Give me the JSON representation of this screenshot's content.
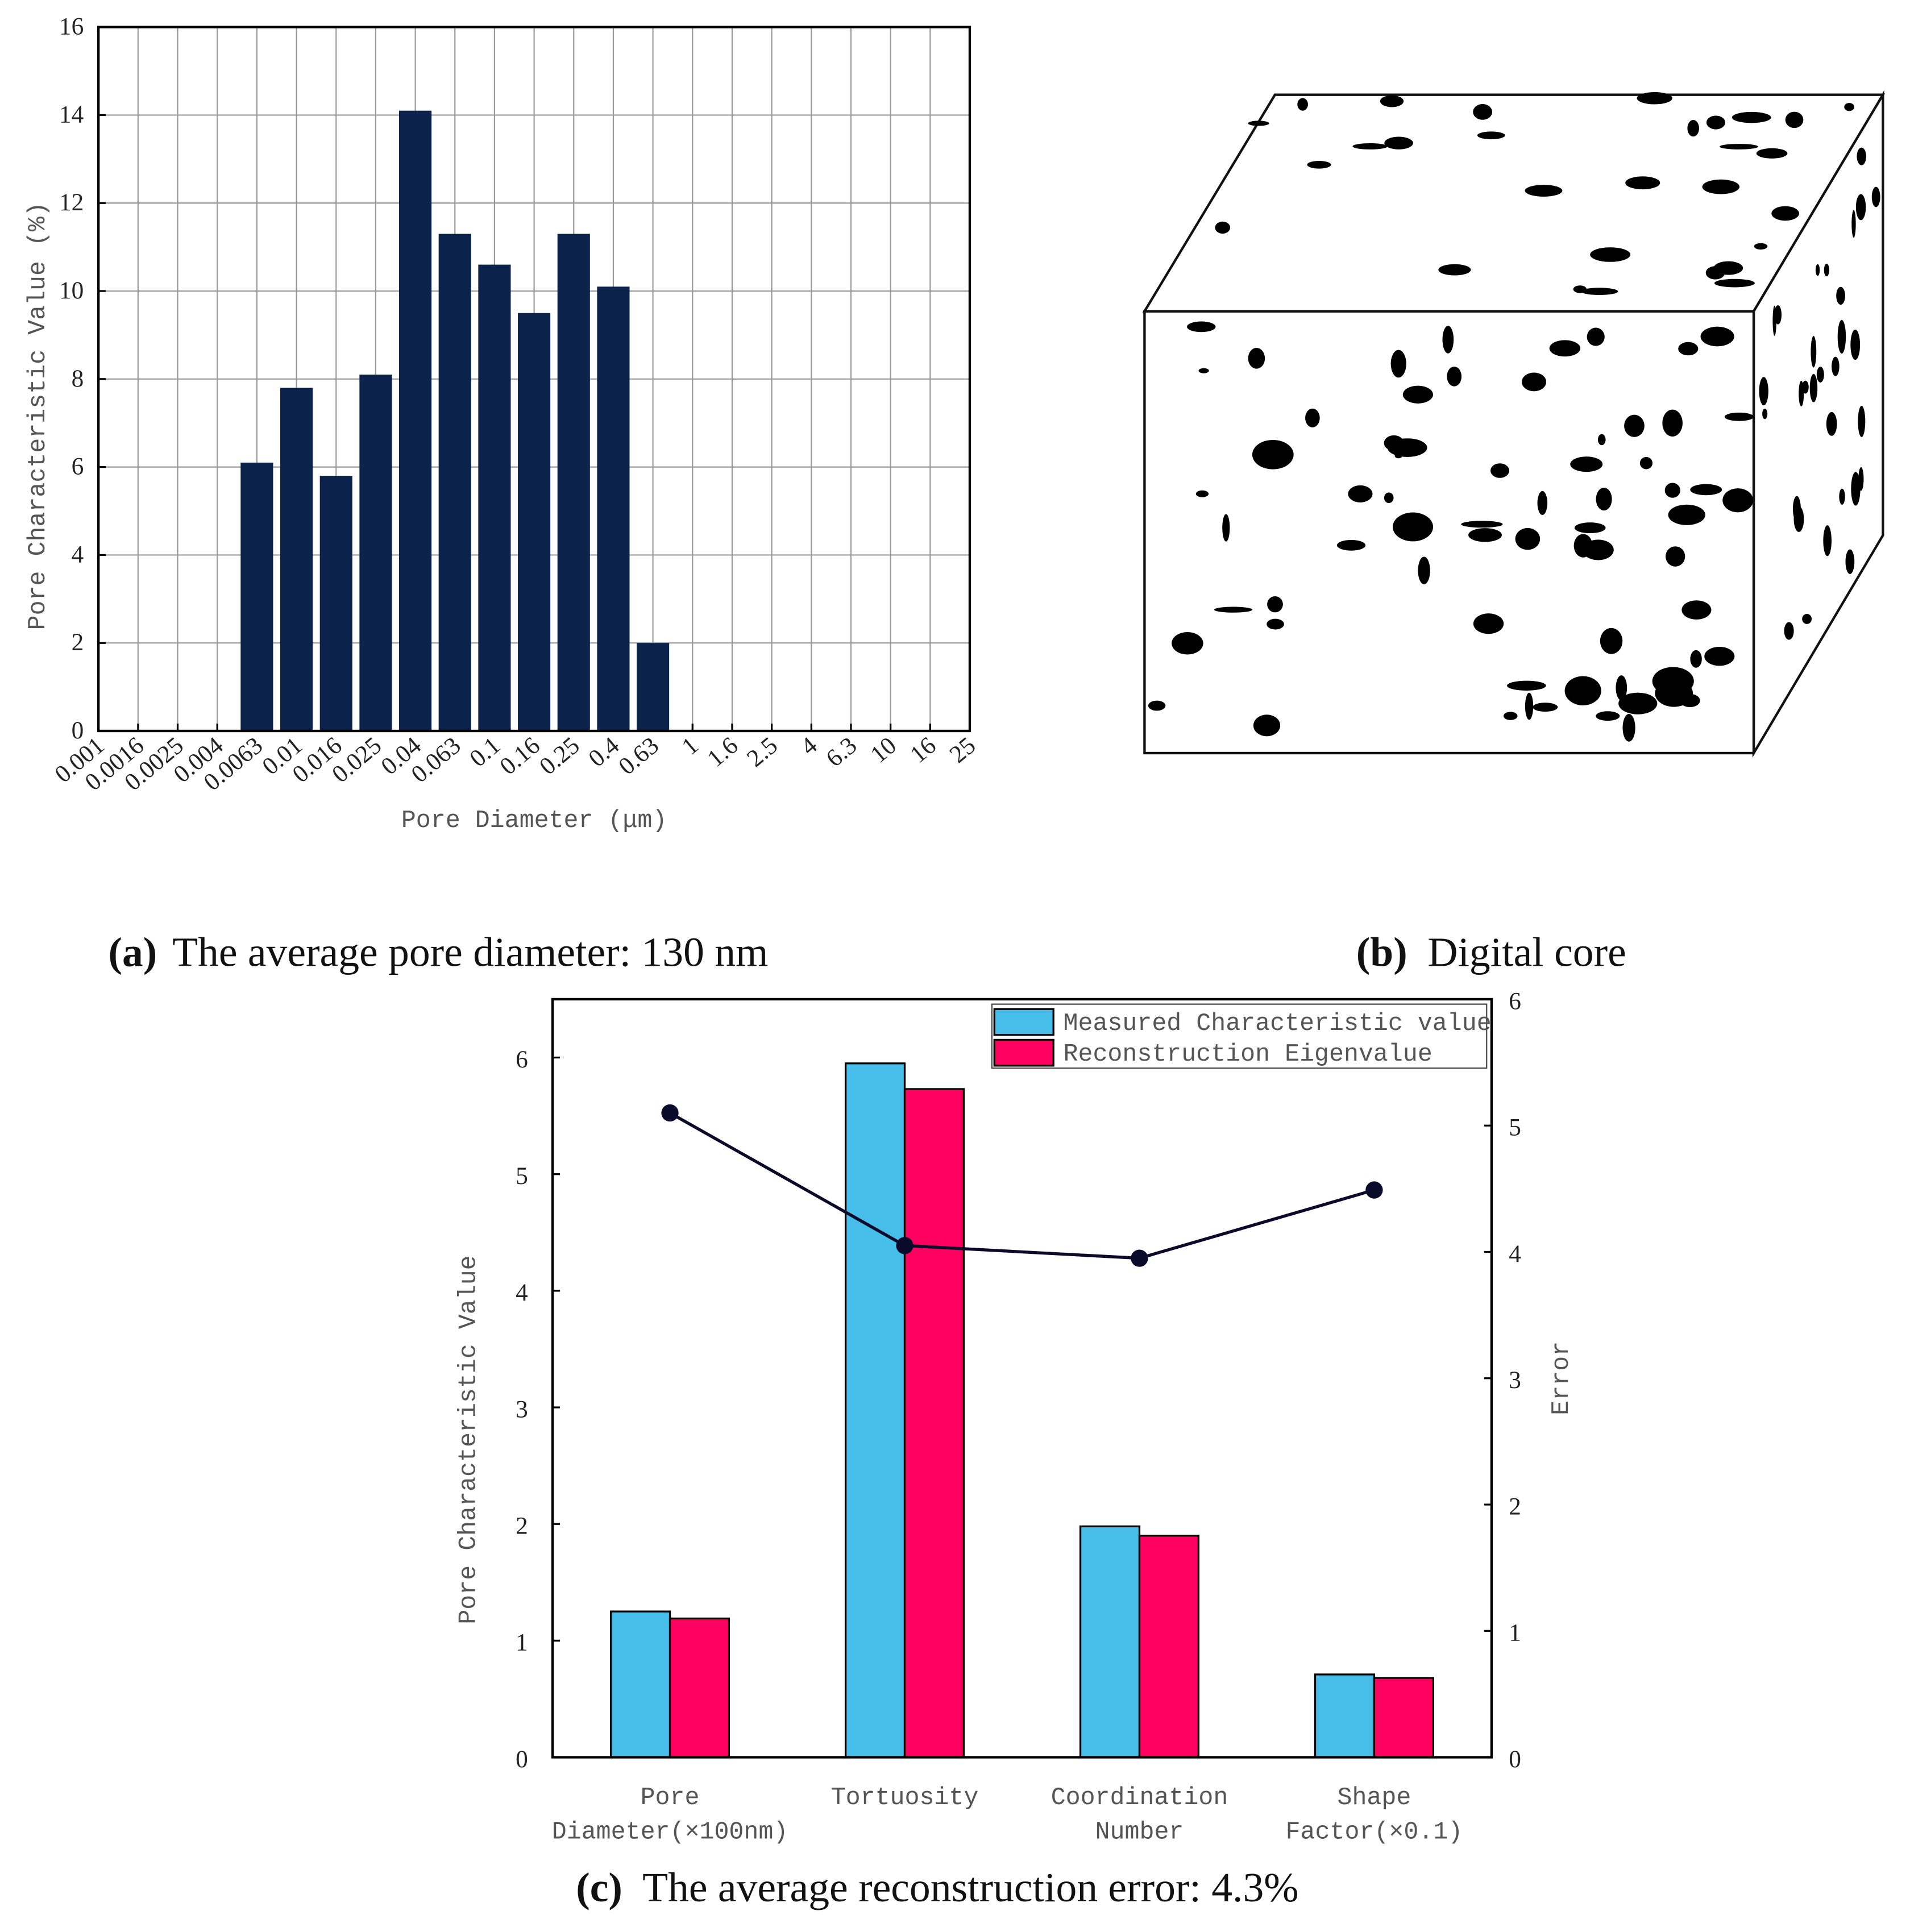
{
  "chart_data": [
    {
      "type": "bar",
      "categories": [
        "0.001",
        "0.0016",
        "0.0025",
        "0.004",
        "0.0063",
        "0.01",
        "0.016",
        "0.025",
        "0.04",
        "0.063",
        "0.1",
        "0.16",
        "0.25",
        "0.4",
        "0.63",
        "1",
        "1.6",
        "2.5",
        "4",
        "6.3",
        "10",
        "16",
        "25"
      ],
      "values": [
        0,
        0,
        0,
        0,
        6.1,
        7.8,
        5.8,
        8.1,
        14.1,
        11.3,
        10.6,
        9.5,
        11.3,
        10.1,
        2.0,
        0,
        0,
        0,
        0,
        0,
        0,
        0,
        0
      ],
      "color": "#0b224a",
      "ylim": [
        0,
        16
      ],
      "yticks": [
        0,
        2,
        4,
        6,
        8,
        10,
        12,
        14,
        16
      ],
      "grid": true,
      "xlabel": "Pore Diameter (μm)",
      "ylabel": "Pore Characteristic Value (%)"
    },
    {
      "type": "bar",
      "categories": [
        "Pore Diameter(×100nm)",
        "Tortuosity",
        "Coordination Number",
        "Shape Factor(×0.1)"
      ],
      "series": [
        {
          "name": "Measured Characteristic value",
          "color": "#47bdea",
          "values": [
            1.25,
            5.95,
            1.98,
            0.71
          ]
        },
        {
          "name": "Reconstruction Eigenvalue",
          "color": "#ff0060",
          "values": [
            1.19,
            5.73,
            1.9,
            0.68
          ]
        },
        {
          "type": "line",
          "color": "#0a0a2a",
          "axis": "y2",
          "values": [
            5.1,
            4.05,
            3.95,
            4.49
          ]
        }
      ],
      "ylim": [
        0,
        6.5
      ],
      "yticks": [
        0,
        1,
        2,
        3,
        4,
        5,
        6
      ],
      "y2lim": [
        0,
        6
      ],
      "y2ticks": [
        0,
        1,
        2,
        3,
        4,
        5,
        6
      ],
      "ylabel": "Pore Characteristic Value",
      "y2label": "Error",
      "legend": "upper right"
    }
  ],
  "captions": [
    {
      "label": "(a)",
      "text": "The average pore diameter: 130 nm"
    },
    {
      "label": "(b)",
      "text": "Digital core"
    },
    {
      "label": "(c)",
      "text": "The average reconstruction error: 4.3%"
    }
  ]
}
